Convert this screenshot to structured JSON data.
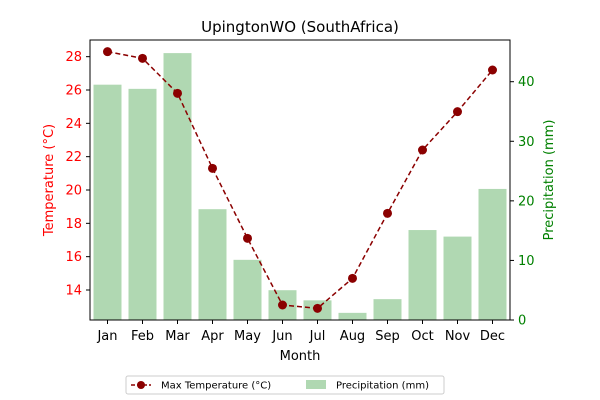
{
  "chart_data": {
    "type": "bar+line",
    "title": "UpingtonWO (SouthAfrica)",
    "xlabel": "Month",
    "ylabel_left": "Temperature (°C)",
    "ylabel_right": "Precipitation (mm)",
    "categories": [
      "Jan",
      "Feb",
      "Mar",
      "Apr",
      "May",
      "Jun",
      "Jul",
      "Aug",
      "Sep",
      "Oct",
      "Nov",
      "Dec"
    ],
    "y_left_lim": [
      12.2,
      29.0
    ],
    "y_left_ticks": [
      14,
      16,
      18,
      20,
      22,
      24,
      26,
      28
    ],
    "y_right_lim": [
      0,
      47
    ],
    "y_right_ticks": [
      0,
      10,
      20,
      30,
      40
    ],
    "series": [
      {
        "name": "Max Temperature (°C)",
        "kind": "line",
        "axis": "left",
        "color": "#8b0000",
        "values": [
          28.3,
          27.9,
          25.8,
          21.3,
          17.1,
          13.1,
          12.9,
          14.7,
          18.6,
          22.4,
          24.7,
          27.2
        ]
      },
      {
        "name": "Precipitation (mm)",
        "kind": "bar",
        "axis": "right",
        "color": "#b0d8b2",
        "values": [
          39.5,
          38.8,
          44.8,
          18.6,
          10.1,
          5.0,
          3.3,
          1.2,
          3.5,
          15.1,
          14.0,
          22.0
        ]
      }
    ],
    "left_axis_color": "#ff0000",
    "right_axis_color": "#008000",
    "legend": {
      "position": "bottom-center",
      "columns": 2
    }
  }
}
